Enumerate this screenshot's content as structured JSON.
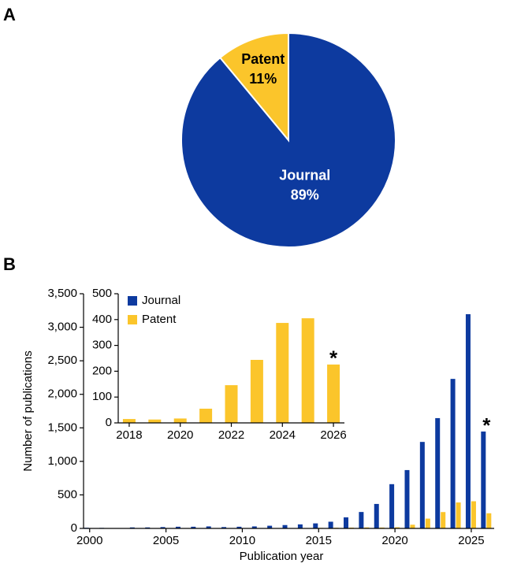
{
  "chart_data": [
    {
      "type": "pie",
      "panel_label": "A",
      "categories": [
        "Journal",
        "Patent"
      ],
      "values": [
        89,
        11
      ],
      "value_labels": [
        "89%",
        "11%"
      ],
      "colors": [
        "#0d3a9f",
        "#fbc52b"
      ]
    },
    {
      "type": "bar",
      "panel_label": "B",
      "x": [
        2000,
        2001,
        2002,
        2003,
        2004,
        2005,
        2006,
        2007,
        2008,
        2009,
        2010,
        2011,
        2012,
        2013,
        2014,
        2015,
        2016,
        2017,
        2018,
        2019,
        2020,
        2021,
        2022,
        2023,
        2024,
        2025,
        2026
      ],
      "series": [
        {
          "name": "Journal",
          "color": "#0d3a9f",
          "values": [
            10,
            8,
            5,
            15,
            15,
            20,
            25,
            25,
            30,
            20,
            25,
            30,
            40,
            50,
            60,
            75,
            100,
            165,
            245,
            365,
            660,
            870,
            1290,
            1645,
            2230,
            3195,
            1445
          ]
        },
        {
          "name": "Patent",
          "color": "#fbc52b",
          "values": [
            1,
            1,
            1,
            2,
            2,
            2,
            3,
            3,
            2,
            2,
            3,
            4,
            4,
            5,
            6,
            8,
            10,
            12,
            15,
            13,
            17,
            55,
            146,
            244,
            387,
            405,
            226
          ]
        }
      ],
      "xlim": [
        1999.6,
        2026.5
      ],
      "xticks": [
        2000,
        2005,
        2010,
        2015,
        2020,
        2025
      ],
      "ylim": [
        0,
        3500
      ],
      "yticks": [
        0,
        500,
        {
          "value": 1000,
          "label": "1,000"
        },
        {
          "value": 1500,
          "label": "1,500"
        },
        {
          "value": 2000,
          "label": "2,000"
        },
        {
          "value": 2500,
          "label": "2,500"
        },
        {
          "value": 3000,
          "label": "3,000"
        },
        {
          "value": 3500,
          "label": "3,500"
        }
      ],
      "xlabel": "Publication year",
      "ylabel": "Number of publications",
      "legend": "upper left",
      "annotation": "*"
    },
    {
      "type": "bar",
      "x": [
        2018,
        2019,
        2020,
        2021,
        2022,
        2023,
        2024,
        2025,
        2026
      ],
      "series": [
        {
          "color": "#fbc52b",
          "values": [
            15,
            13,
            17,
            55,
            146,
            244,
            387,
            405,
            226
          ]
        }
      ],
      "xlim": [
        2017.57,
        2026.43
      ],
      "xticks": [
        2018,
        2020,
        2022,
        2024,
        2026
      ],
      "ylim": [
        0,
        500
      ],
      "yticks": [
        0,
        100,
        200,
        300,
        400,
        500
      ],
      "annotation": "*"
    }
  ]
}
